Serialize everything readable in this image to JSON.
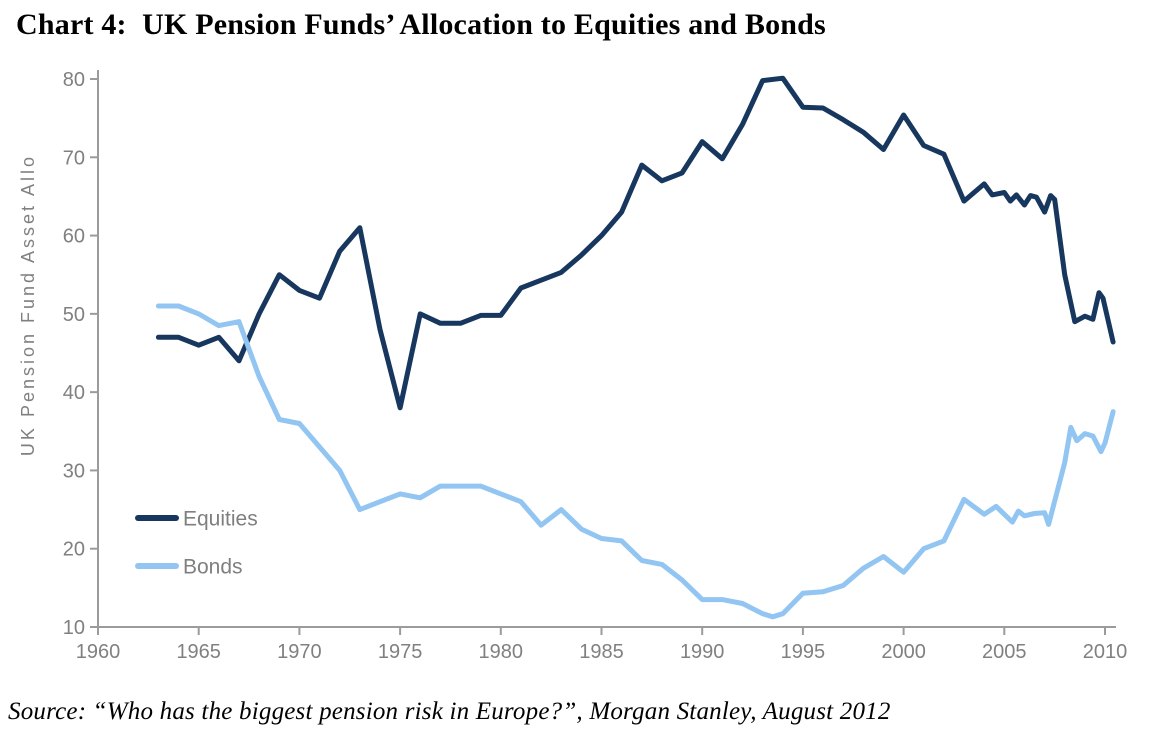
{
  "title": "Chart 4:  UK Pension Funds’ Allocation to Equities and Bonds",
  "source_note": "Source: “Who has the biggest pension risk in Europe?”, Morgan Stanley, August 2012",
  "colors": {
    "equities": "#17375E",
    "bonds": "#92C5F1",
    "axis_line": "#9B9B9B",
    "tick_text": "#808080",
    "legend_text": "#7F7F7F"
  },
  "chart_data": {
    "type": "line",
    "title": "Chart 4: UK Pension Funds' Allocation to Equities and Bonds",
    "xlabel": "",
    "ylabel": "UK Pension Fund Asset Allo",
    "xlim": [
      1960,
      2011
    ],
    "ylim": [
      10,
      81
    ],
    "x_ticks": [
      1960,
      1965,
      1970,
      1975,
      1980,
      1985,
      1990,
      1995,
      2000,
      2005,
      2010
    ],
    "y_ticks": [
      10,
      20,
      30,
      40,
      50,
      60,
      70,
      80
    ],
    "grid": false,
    "legend_position": "inside-lower-left",
    "series": [
      {
        "name": "Equities",
        "color": "#17375E",
        "points": [
          [
            1963,
            47
          ],
          [
            1964,
            47
          ],
          [
            1965,
            46
          ],
          [
            1966,
            47
          ],
          [
            1967,
            44
          ],
          [
            1968,
            50
          ],
          [
            1969,
            55
          ],
          [
            1970,
            53
          ],
          [
            1971,
            52
          ],
          [
            1972,
            58
          ],
          [
            1973,
            61
          ],
          [
            1974,
            48
          ],
          [
            1975,
            38
          ],
          [
            1976,
            50
          ],
          [
            1977,
            48.8
          ],
          [
            1978,
            48.8
          ],
          [
            1979,
            49.8
          ],
          [
            1980,
            49.8
          ],
          [
            1981,
            53.3
          ],
          [
            1982,
            54.3
          ],
          [
            1983,
            55.3
          ],
          [
            1984,
            57.5
          ],
          [
            1985,
            60
          ],
          [
            1986,
            63
          ],
          [
            1987,
            69
          ],
          [
            1988,
            67
          ],
          [
            1989,
            68
          ],
          [
            1990,
            72
          ],
          [
            1991,
            69.8
          ],
          [
            1992,
            74.2
          ],
          [
            1993,
            79.8
          ],
          [
            1994,
            80.1
          ],
          [
            1995,
            76.4
          ],
          [
            1996,
            76.3
          ],
          [
            1997,
            74.8
          ],
          [
            1998,
            73.2
          ],
          [
            1999,
            71
          ],
          [
            2000,
            75.4
          ],
          [
            2001,
            71.5
          ],
          [
            2002,
            70.4
          ],
          [
            2003,
            64.4
          ],
          [
            2004,
            66.6
          ],
          [
            2004.4,
            65.2
          ],
          [
            2005,
            65.5
          ],
          [
            2005.3,
            64.4
          ],
          [
            2005.6,
            65.2
          ],
          [
            2006,
            63.9
          ],
          [
            2006.3,
            65.1
          ],
          [
            2006.6,
            64.9
          ],
          [
            2007,
            63
          ],
          [
            2007.3,
            65.1
          ],
          [
            2007.5,
            64.6
          ],
          [
            2008,
            55
          ],
          [
            2008.5,
            49
          ],
          [
            2009,
            49.7
          ],
          [
            2009.4,
            49.3
          ],
          [
            2009.7,
            52.7
          ],
          [
            2009.9,
            52
          ],
          [
            2010.4,
            46.4
          ]
        ]
      },
      {
        "name": "Bonds",
        "color": "#92C5F1",
        "points": [
          [
            1963,
            51
          ],
          [
            1964,
            51
          ],
          [
            1965,
            50
          ],
          [
            1966,
            48.5
          ],
          [
            1967,
            49
          ],
          [
            1968,
            42
          ],
          [
            1969,
            36.5
          ],
          [
            1970,
            36
          ],
          [
            1971,
            33
          ],
          [
            1972,
            30
          ],
          [
            1973,
            25
          ],
          [
            1974,
            26
          ],
          [
            1975,
            27
          ],
          [
            1976,
            26.5
          ],
          [
            1977,
            28
          ],
          [
            1978,
            28
          ],
          [
            1979,
            28
          ],
          [
            1980,
            27
          ],
          [
            1981,
            26
          ],
          [
            1982,
            23
          ],
          [
            1983,
            25
          ],
          [
            1984,
            22.5
          ],
          [
            1985,
            21.3
          ],
          [
            1986,
            21
          ],
          [
            1987,
            18.5
          ],
          [
            1988,
            18
          ],
          [
            1989,
            16
          ],
          [
            1990,
            13.5
          ],
          [
            1991,
            13.5
          ],
          [
            1992,
            13
          ],
          [
            1993,
            11.7
          ],
          [
            1993.5,
            11.3
          ],
          [
            1994,
            11.7
          ],
          [
            1995,
            14.3
          ],
          [
            1996,
            14.5
          ],
          [
            1997,
            15.3
          ],
          [
            1998,
            17.5
          ],
          [
            1999,
            19
          ],
          [
            2000,
            17
          ],
          [
            2001,
            20
          ],
          [
            2002,
            21
          ],
          [
            2003,
            26.3
          ],
          [
            2004,
            24.4
          ],
          [
            2004.6,
            25.4
          ],
          [
            2005,
            24.4
          ],
          [
            2005.4,
            23.4
          ],
          [
            2005.7,
            24.8
          ],
          [
            2006,
            24.2
          ],
          [
            2006.5,
            24.5
          ],
          [
            2007,
            24.6
          ],
          [
            2007.2,
            23.1
          ],
          [
            2008,
            31
          ],
          [
            2008.3,
            35.5
          ],
          [
            2008.6,
            33.8
          ],
          [
            2009,
            34.7
          ],
          [
            2009.4,
            34.4
          ],
          [
            2009.8,
            32.4
          ],
          [
            2010,
            33.5
          ],
          [
            2010.4,
            37.5
          ]
        ]
      }
    ]
  }
}
